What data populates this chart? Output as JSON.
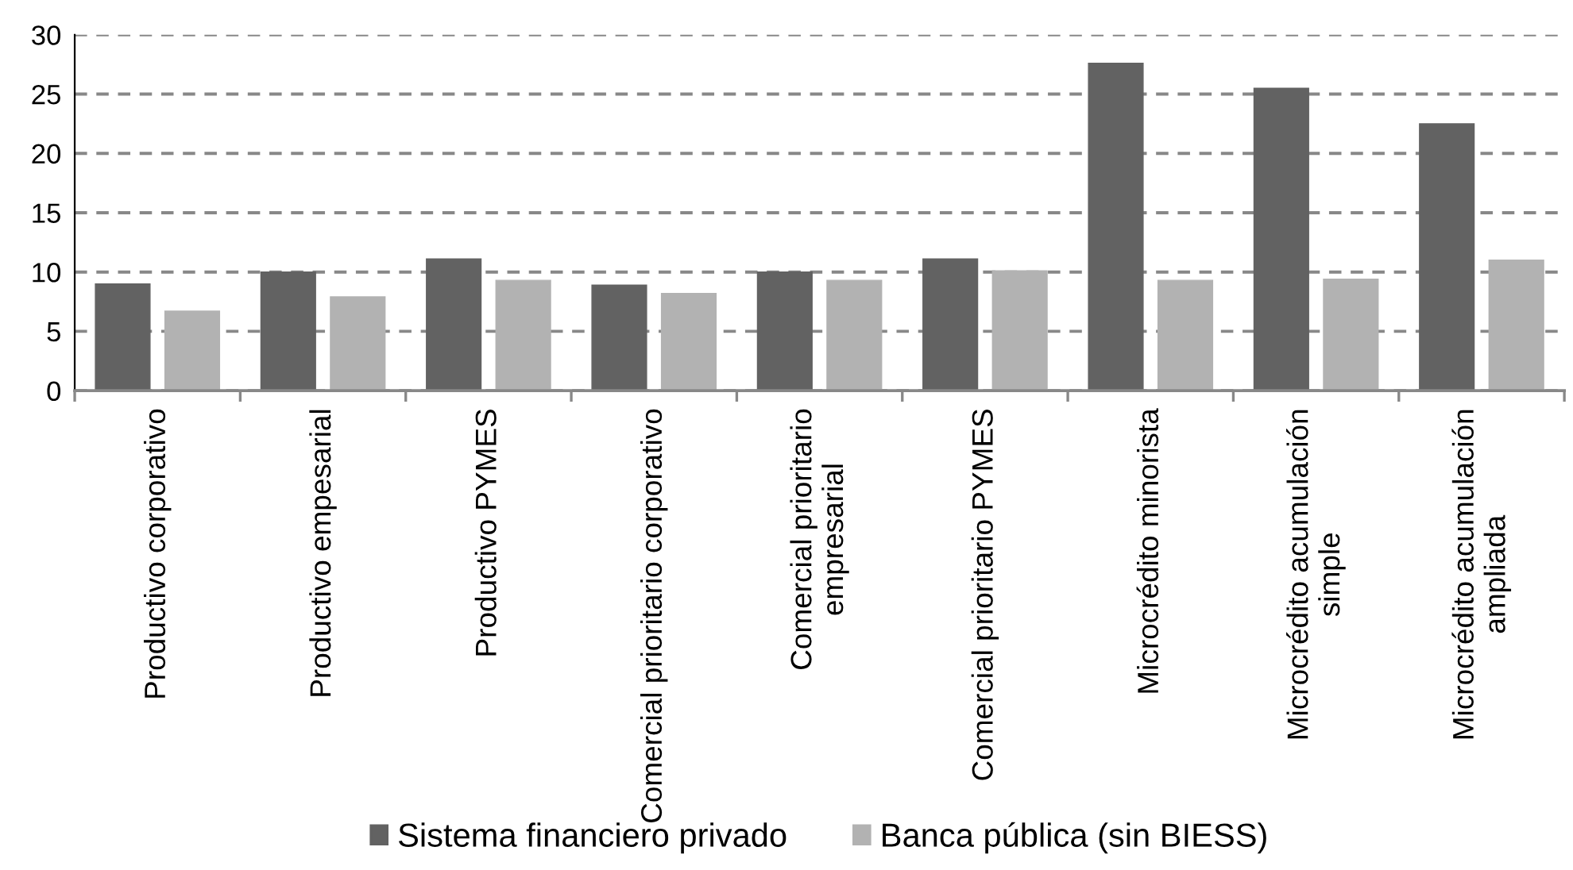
{
  "chart_data": {
    "type": "bar",
    "categories": [
      "Productivo corporativo",
      "Productivo empesarial",
      "Productivo PYMES",
      "Comercial prioritario corporativo",
      "Comercial prioritario\nempresarial",
      "Comercial prioritario PYMES",
      "Microcrédito minorista",
      "Microcrédito acumulación\nsimple",
      "Microcrédito acumulación\nampliada"
    ],
    "series": [
      {
        "name": "Sistema financiero privado",
        "color": "#626262",
        "values": [
          9.0,
          10.0,
          11.1,
          8.9,
          10.0,
          11.1,
          27.6,
          25.5,
          22.5
        ]
      },
      {
        "name": "Banca pública (sin BIESS)",
        "color": "#b2b2b2",
        "values": [
          6.7,
          7.9,
          9.3,
          8.2,
          9.3,
          10.1,
          9.3,
          9.4,
          11.0
        ]
      }
    ],
    "ylim": [
      0,
      30
    ],
    "yticks": [
      0,
      5,
      10,
      15,
      20,
      25,
      30
    ],
    "grid": "y",
    "legend": "bottom"
  }
}
